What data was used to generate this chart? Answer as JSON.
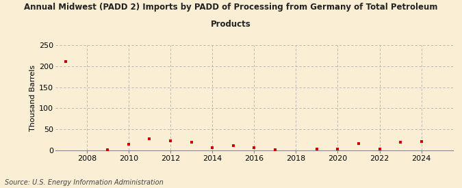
{
  "title_line1": "Annual Midwest (PADD 2) Imports by PADD of Processing from Germany of Total Petroleum",
  "title_line2": "Products",
  "ylabel": "Thousand Barrels",
  "source": "Source: U.S. Energy Information Administration",
  "background_color": "#faefd4",
  "plot_background_color": "#faefd4",
  "marker_color": "#cc0000",
  "xlim": [
    2006.5,
    2025.5
  ],
  "ylim": [
    0,
    250
  ],
  "yticks": [
    0,
    50,
    100,
    150,
    200,
    250
  ],
  "xticks": [
    2008,
    2010,
    2012,
    2014,
    2016,
    2018,
    2020,
    2022,
    2024
  ],
  "data": [
    [
      2007,
      211
    ],
    [
      2009,
      1
    ],
    [
      2010,
      14
    ],
    [
      2011,
      28
    ],
    [
      2012,
      23
    ],
    [
      2013,
      19
    ],
    [
      2014,
      7
    ],
    [
      2015,
      12
    ],
    [
      2016,
      7
    ],
    [
      2017,
      2
    ],
    [
      2019,
      3
    ],
    [
      2020,
      3
    ],
    [
      2021,
      17
    ],
    [
      2022,
      4
    ],
    [
      2023,
      19
    ],
    [
      2024,
      21
    ]
  ]
}
